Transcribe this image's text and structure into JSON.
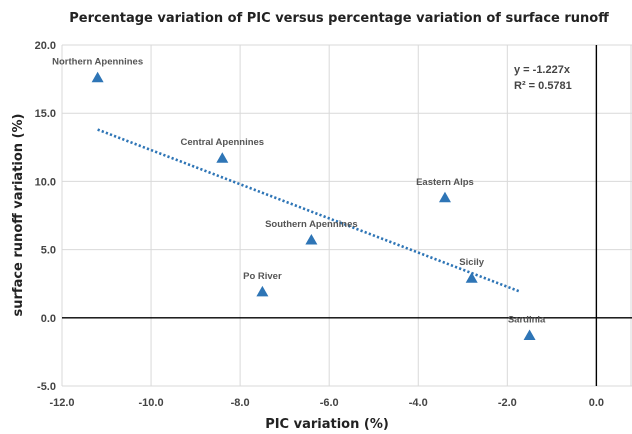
{
  "chart_data": {
    "type": "scatter",
    "title": "Percentage variation of PIC versus percentage variation of surface runoff",
    "xlabel": "PIC variation (%)",
    "ylabel": "surface runoff variation (%)",
    "xlim": [
      -12.0,
      0.8
    ],
    "ylim": [
      -5.0,
      20.0
    ],
    "x_ticks": [
      -12.0,
      -10.0,
      -8.0,
      -6.0,
      -4.0,
      -2.0,
      0.0
    ],
    "x_tick_labels": [
      "-12.0",
      "-10.0",
      "-8.0",
      "-6.0",
      "-4.0",
      "-2.0",
      "0.0"
    ],
    "y_ticks": [
      -5.0,
      0.0,
      5.0,
      10.0,
      15.0,
      20.0
    ],
    "y_tick_labels": [
      "-5.0",
      "0.0",
      "5.0",
      "10.0",
      "15.0",
      "20.0"
    ],
    "grid": true,
    "marker": "triangle",
    "color": "#2e75b6",
    "points": [
      {
        "label": "Northern Apennines",
        "x": -11.2,
        "y": 17.6
      },
      {
        "label": "Central Apennines",
        "x": -8.4,
        "y": 11.7
      },
      {
        "label": "Eastern Alps",
        "x": -3.4,
        "y": 8.8
      },
      {
        "label": "Southern Apennines",
        "x": -6.4,
        "y": 5.7
      },
      {
        "label": "Po River",
        "x": -7.5,
        "y": 1.9
      },
      {
        "label": "Sicily",
        "x": -2.8,
        "y": 2.9
      },
      {
        "label": "Sardinia",
        "x": -1.5,
        "y": -1.3
      }
    ],
    "trendline": {
      "x_range": [
        -11.2,
        -1.7
      ],
      "y_range": [
        13.8,
        1.9
      ],
      "equation": "y = -1.227x",
      "r_squared": "R² = 0.5781"
    }
  }
}
